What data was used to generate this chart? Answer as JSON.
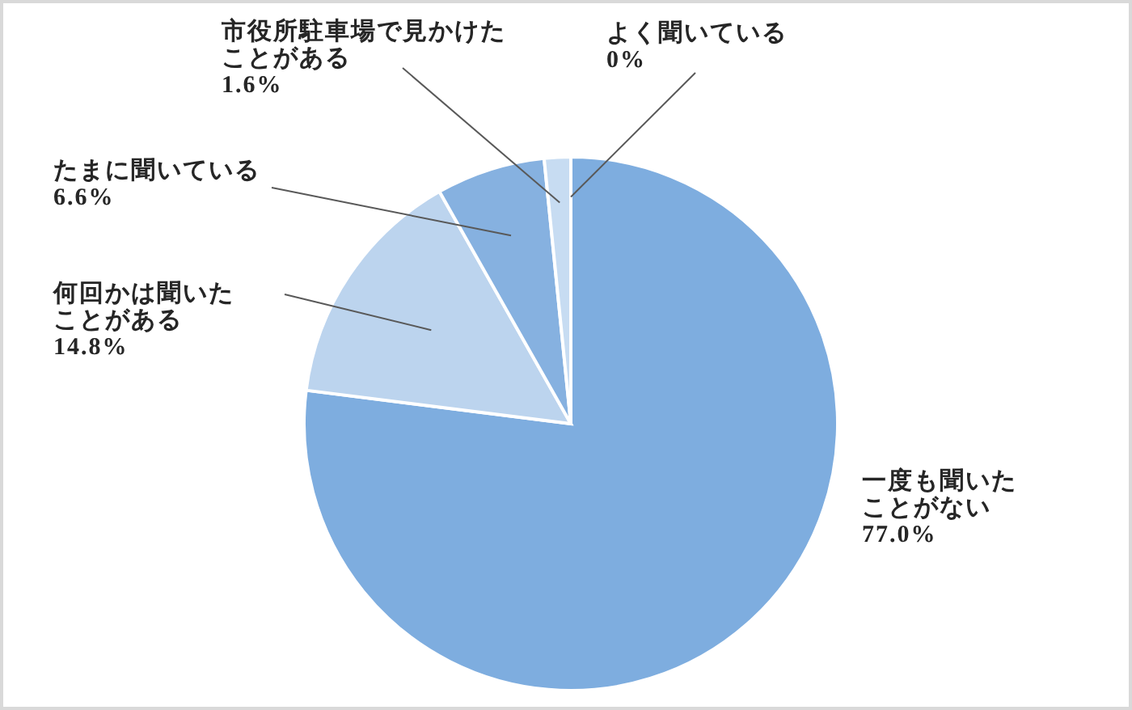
{
  "chart_data": {
    "type": "pie",
    "categories": [
      "一度も聞いたことがない",
      "何回かは聞いたことがある",
      "たまに聞いている",
      "市役所駐車場で見かけたことがある",
      "よく聞いている"
    ],
    "values": [
      77.0,
      14.8,
      6.6,
      1.6,
      0
    ],
    "colors": [
      "#7eaddf",
      "#bcd4ee",
      "#86b1e0",
      "#c7dcf2",
      "#7eaddf"
    ],
    "value_labels": [
      "77.0%",
      "14.8%",
      "6.6%",
      "1.6%",
      "0%"
    ]
  }
}
